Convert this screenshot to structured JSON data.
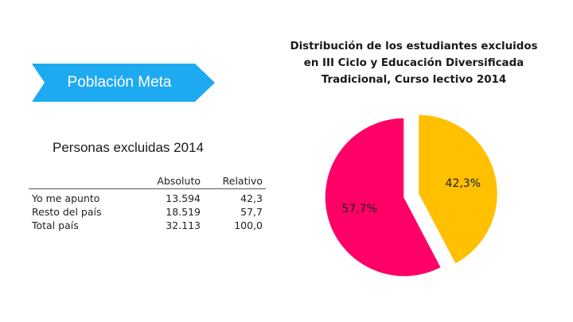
{
  "banner": {
    "label": "Población Meta",
    "color": "#1eaaf1"
  },
  "table": {
    "title": "Personas excluidas 2014",
    "headers": [
      "",
      "Absoluto",
      "Relativo"
    ],
    "rows": [
      [
        "Yo me apunto",
        "13.594",
        "42,3"
      ],
      [
        "Resto del país",
        "18.519",
        "57,7"
      ],
      [
        "Total país",
        "32.113",
        "100,0"
      ]
    ]
  },
  "chart_data": {
    "type": "pie",
    "title_lines": [
      "Distribución de los estudiantes excluidos",
      "en III Ciclo y Educación Diversificada",
      "Tradicional, Curso lectivo 2014"
    ],
    "slices": [
      {
        "value": 42.3,
        "label": "42,3%",
        "color": "#ffc000",
        "exploded": true
      },
      {
        "value": 57.7,
        "label": "57,7%",
        "color": "#ff0066",
        "exploded": false
      }
    ]
  }
}
